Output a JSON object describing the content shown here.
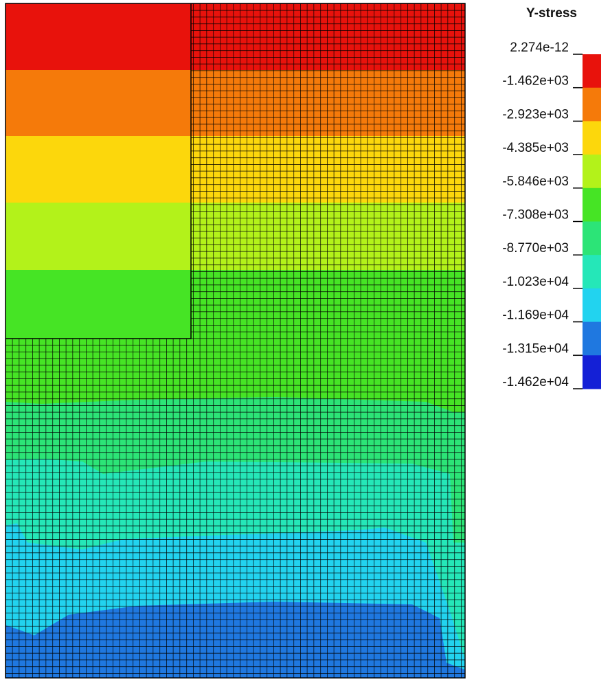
{
  "legend": {
    "title": "Y-stress",
    "labels": [
      "2.274e-12",
      "-1.462e+03",
      "-2.923e+03",
      "-4.385e+03",
      "-5.846e+03",
      "-7.308e+03",
      "-8.770e+03",
      "-1.023e+04",
      "-1.169e+04",
      "-1.315e+04",
      "-1.462e+04"
    ],
    "colors": [
      "#e8120c",
      "#f57a0a",
      "#fcd70c",
      "#b3f21a",
      "#46e425",
      "#2ce477",
      "#25e7b8",
      "#22d3ef",
      "#1f78e0",
      "#1420d6"
    ]
  }
}
